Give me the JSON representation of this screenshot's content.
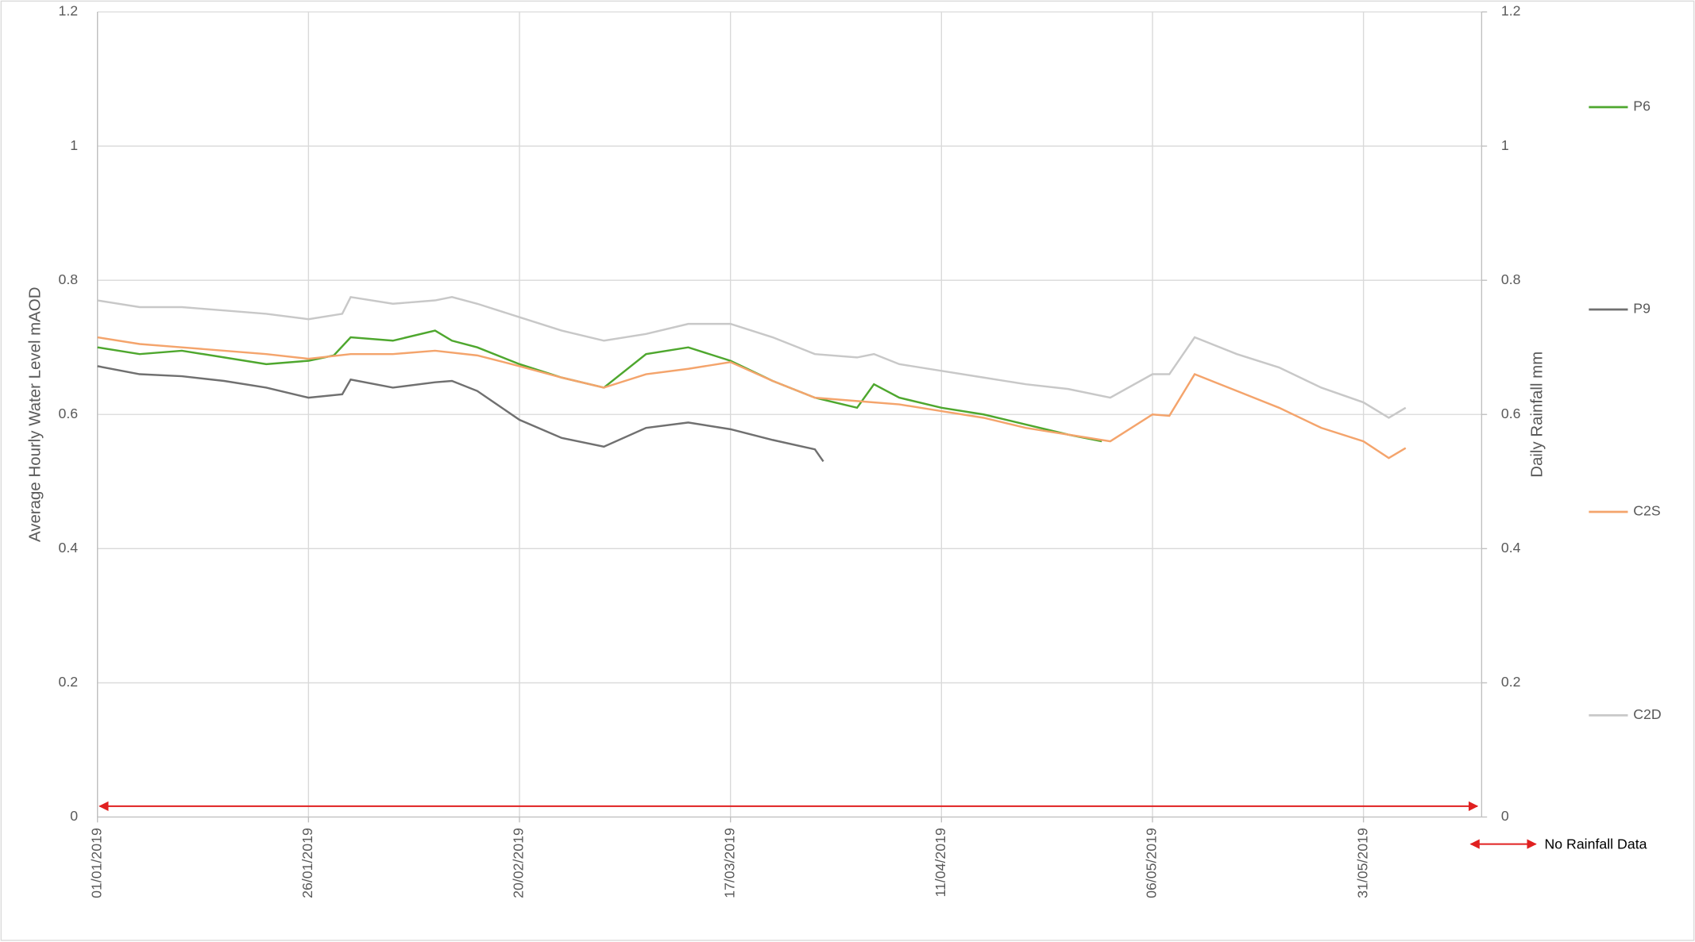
{
  "chart_data": {
    "type": "line",
    "y_label": "Average Hourly Water Level mAOD",
    "y2_label": "Daily Rainfall mm",
    "annotation": "No Rainfall Data",
    "annotation_color": "#e02020",
    "legend": "right",
    "grid": true,
    "xlim": [
      "2019-01-01",
      "2019-06-14"
    ],
    "xticks": [
      {
        "value": "2019-01-01",
        "label": "01/01/2019"
      },
      {
        "value": "2019-01-26",
        "label": "26/01/2019"
      },
      {
        "value": "2019-02-20",
        "label": "20/02/2019"
      },
      {
        "value": "2019-03-17",
        "label": "17/03/2019"
      },
      {
        "value": "2019-04-11",
        "label": "11/04/2019"
      },
      {
        "value": "2019-05-06",
        "label": "06/05/2019"
      },
      {
        "value": "2019-05-31",
        "label": "31/05/2019"
      }
    ],
    "ylim": [
      0,
      1.2
    ],
    "yticks": [
      0,
      0.2,
      0.4,
      0.6,
      0.8,
      1,
      1.2
    ],
    "y2lim": [
      0,
      1.2
    ],
    "y2ticks": [
      0,
      0.2,
      0.4,
      0.6,
      0.8,
      1,
      1.2
    ],
    "series": [
      {
        "name": "P6",
        "color": "#4ea72e",
        "x": [
          "2019-01-01",
          "2019-01-06",
          "2019-01-11",
          "2019-01-16",
          "2019-01-21",
          "2019-01-26",
          "2019-01-29",
          "2019-01-31",
          "2019-02-05",
          "2019-02-10",
          "2019-02-12",
          "2019-02-15",
          "2019-02-20",
          "2019-02-25",
          "2019-03-02",
          "2019-03-07",
          "2019-03-12",
          "2019-03-17",
          "2019-03-22",
          "2019-03-27",
          "2019-04-01",
          "2019-04-03",
          "2019-04-06",
          "2019-04-11",
          "2019-04-16",
          "2019-04-21",
          "2019-04-26",
          "2019-04-30"
        ],
        "values": [
          0.7,
          0.69,
          0.695,
          0.685,
          0.675,
          0.68,
          0.688,
          0.715,
          0.71,
          0.725,
          0.71,
          0.7,
          0.675,
          0.655,
          0.64,
          0.69,
          0.7,
          0.68,
          0.65,
          0.625,
          0.61,
          0.645,
          0.625,
          0.61,
          0.6,
          0.585,
          0.57,
          0.56
        ]
      },
      {
        "name": "P9",
        "color": "#707070",
        "x": [
          "2019-01-01",
          "2019-01-06",
          "2019-01-11",
          "2019-01-16",
          "2019-01-21",
          "2019-01-26",
          "2019-01-30",
          "2019-01-31",
          "2019-02-05",
          "2019-02-10",
          "2019-02-12",
          "2019-02-15",
          "2019-02-20",
          "2019-02-25",
          "2019-03-02",
          "2019-03-07",
          "2019-03-12",
          "2019-03-17",
          "2019-03-22",
          "2019-03-27",
          "2019-03-28"
        ],
        "values": [
          0.672,
          0.66,
          0.657,
          0.65,
          0.64,
          0.625,
          0.63,
          0.652,
          0.64,
          0.648,
          0.65,
          0.635,
          0.592,
          0.565,
          0.552,
          0.58,
          0.588,
          0.578,
          0.562,
          0.548,
          0.53
        ]
      },
      {
        "name": "C2S",
        "color": "#f4a46c",
        "x": [
          "2019-01-01",
          "2019-01-06",
          "2019-01-11",
          "2019-01-16",
          "2019-01-21",
          "2019-01-26",
          "2019-01-31",
          "2019-02-05",
          "2019-02-10",
          "2019-02-15",
          "2019-02-20",
          "2019-02-25",
          "2019-03-02",
          "2019-03-07",
          "2019-03-12",
          "2019-03-17",
          "2019-03-22",
          "2019-03-27",
          "2019-04-01",
          "2019-04-06",
          "2019-04-11",
          "2019-04-16",
          "2019-04-21",
          "2019-04-26",
          "2019-05-01",
          "2019-05-06",
          "2019-05-08",
          "2019-05-11",
          "2019-05-16",
          "2019-05-21",
          "2019-05-26",
          "2019-05-31",
          "2019-06-03",
          "2019-06-05"
        ],
        "values": [
          0.715,
          0.705,
          0.7,
          0.695,
          0.69,
          0.683,
          0.69,
          0.69,
          0.695,
          0.688,
          0.672,
          0.655,
          0.64,
          0.66,
          0.668,
          0.678,
          0.65,
          0.625,
          0.62,
          0.615,
          0.605,
          0.595,
          0.58,
          0.57,
          0.56,
          0.6,
          0.598,
          0.66,
          0.635,
          0.61,
          0.58,
          0.56,
          0.535,
          0.55
        ]
      },
      {
        "name": "C2D",
        "color": "#c8c8c8",
        "x": [
          "2019-01-01",
          "2019-01-06",
          "2019-01-11",
          "2019-01-16",
          "2019-01-21",
          "2019-01-26",
          "2019-01-30",
          "2019-01-31",
          "2019-02-05",
          "2019-02-10",
          "2019-02-12",
          "2019-02-15",
          "2019-02-20",
          "2019-02-25",
          "2019-03-02",
          "2019-03-07",
          "2019-03-12",
          "2019-03-17",
          "2019-03-22",
          "2019-03-27",
          "2019-04-01",
          "2019-04-03",
          "2019-04-06",
          "2019-04-11",
          "2019-04-16",
          "2019-04-21",
          "2019-04-26",
          "2019-05-01",
          "2019-05-06",
          "2019-05-08",
          "2019-05-11",
          "2019-05-16",
          "2019-05-21",
          "2019-05-26",
          "2019-05-31",
          "2019-06-03",
          "2019-06-05"
        ],
        "values": [
          0.77,
          0.76,
          0.76,
          0.755,
          0.75,
          0.742,
          0.75,
          0.775,
          0.765,
          0.77,
          0.775,
          0.765,
          0.745,
          0.725,
          0.71,
          0.72,
          0.735,
          0.735,
          0.715,
          0.69,
          0.685,
          0.69,
          0.675,
          0.665,
          0.655,
          0.645,
          0.638,
          0.625,
          0.66,
          0.66,
          0.715,
          0.69,
          0.67,
          0.64,
          0.618,
          0.595,
          0.61
        ]
      }
    ]
  }
}
